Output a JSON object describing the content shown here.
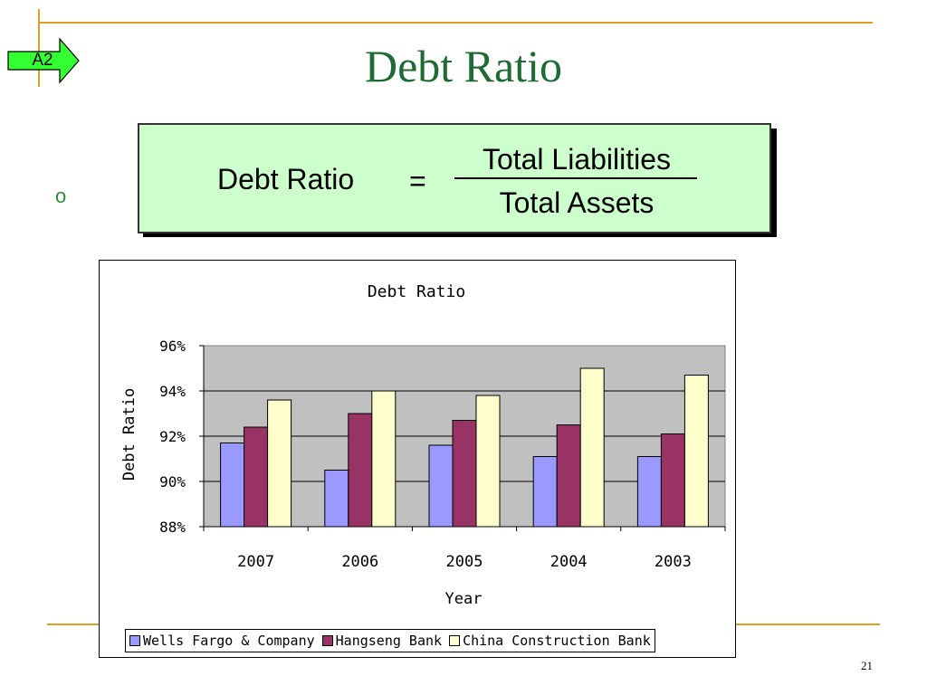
{
  "nav_button": {
    "label": "A2"
  },
  "slide": {
    "title": "Debt Ratio",
    "bullet_glyph": "o",
    "page_number": "21",
    "rule_color": "#DDA01E",
    "title_color": "#1E6B33"
  },
  "formula": {
    "lhs": "Debt Ratio",
    "equals": "=",
    "numerator": "Total Liabilities",
    "denominator": "Total Assets",
    "box_color": "#CCFFCC"
  },
  "chart_data": {
    "type": "bar",
    "title": "Debt Ratio",
    "xlabel": "Year",
    "ylabel": "Debt Ratio",
    "categories": [
      "2007",
      "2006",
      "2005",
      "2004",
      "2003"
    ],
    "ylim": [
      0.88,
      0.96
    ],
    "yticks": [
      0.88,
      0.9,
      0.92,
      0.94,
      0.96
    ],
    "ytick_labels": [
      "88%",
      "90%",
      "92%",
      "94%",
      "96%"
    ],
    "grid": true,
    "plot_background": "#C0C0C0",
    "legend_position": "bottom",
    "series": [
      {
        "name": "Wells Fargo & Company",
        "color": "#9999FF",
        "values": [
          0.917,
          0.905,
          0.916,
          0.911,
          0.911
        ]
      },
      {
        "name": "Hangseng Bank",
        "color": "#993366",
        "values": [
          0.924,
          0.93,
          0.927,
          0.925,
          0.921
        ]
      },
      {
        "name": "China Construction Bank",
        "color": "#FFFFCC",
        "values": [
          0.936,
          0.94,
          0.938,
          0.95,
          0.947
        ]
      }
    ]
  }
}
